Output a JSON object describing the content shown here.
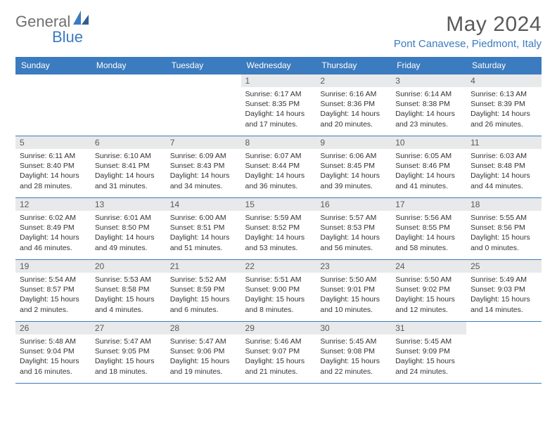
{
  "logo": {
    "part1": "General",
    "part2": "Blue"
  },
  "title": "May 2024",
  "location": "Pont Canavese, Piedmont, Italy",
  "colors": {
    "header_bg": "#3b7bbf",
    "header_text": "#ffffff",
    "daynum_bg": "#e8e9ea",
    "border": "#3b7bbf",
    "title_color": "#5a5a5a",
    "location_color": "#3b7bbf"
  },
  "day_headers": [
    "Sunday",
    "Monday",
    "Tuesday",
    "Wednesday",
    "Thursday",
    "Friday",
    "Saturday"
  ],
  "weeks": [
    [
      null,
      null,
      null,
      {
        "d": "1",
        "sr": "6:17 AM",
        "ss": "8:35 PM",
        "dl": "14 hours and 17 minutes."
      },
      {
        "d": "2",
        "sr": "6:16 AM",
        "ss": "8:36 PM",
        "dl": "14 hours and 20 minutes."
      },
      {
        "d": "3",
        "sr": "6:14 AM",
        "ss": "8:38 PM",
        "dl": "14 hours and 23 minutes."
      },
      {
        "d": "4",
        "sr": "6:13 AM",
        "ss": "8:39 PM",
        "dl": "14 hours and 26 minutes."
      }
    ],
    [
      {
        "d": "5",
        "sr": "6:11 AM",
        "ss": "8:40 PM",
        "dl": "14 hours and 28 minutes."
      },
      {
        "d": "6",
        "sr": "6:10 AM",
        "ss": "8:41 PM",
        "dl": "14 hours and 31 minutes."
      },
      {
        "d": "7",
        "sr": "6:09 AM",
        "ss": "8:43 PM",
        "dl": "14 hours and 34 minutes."
      },
      {
        "d": "8",
        "sr": "6:07 AM",
        "ss": "8:44 PM",
        "dl": "14 hours and 36 minutes."
      },
      {
        "d": "9",
        "sr": "6:06 AM",
        "ss": "8:45 PM",
        "dl": "14 hours and 39 minutes."
      },
      {
        "d": "10",
        "sr": "6:05 AM",
        "ss": "8:46 PM",
        "dl": "14 hours and 41 minutes."
      },
      {
        "d": "11",
        "sr": "6:03 AM",
        "ss": "8:48 PM",
        "dl": "14 hours and 44 minutes."
      }
    ],
    [
      {
        "d": "12",
        "sr": "6:02 AM",
        "ss": "8:49 PM",
        "dl": "14 hours and 46 minutes."
      },
      {
        "d": "13",
        "sr": "6:01 AM",
        "ss": "8:50 PM",
        "dl": "14 hours and 49 minutes."
      },
      {
        "d": "14",
        "sr": "6:00 AM",
        "ss": "8:51 PM",
        "dl": "14 hours and 51 minutes."
      },
      {
        "d": "15",
        "sr": "5:59 AM",
        "ss": "8:52 PM",
        "dl": "14 hours and 53 minutes."
      },
      {
        "d": "16",
        "sr": "5:57 AM",
        "ss": "8:53 PM",
        "dl": "14 hours and 56 minutes."
      },
      {
        "d": "17",
        "sr": "5:56 AM",
        "ss": "8:55 PM",
        "dl": "14 hours and 58 minutes."
      },
      {
        "d": "18",
        "sr": "5:55 AM",
        "ss": "8:56 PM",
        "dl": "15 hours and 0 minutes."
      }
    ],
    [
      {
        "d": "19",
        "sr": "5:54 AM",
        "ss": "8:57 PM",
        "dl": "15 hours and 2 minutes."
      },
      {
        "d": "20",
        "sr": "5:53 AM",
        "ss": "8:58 PM",
        "dl": "15 hours and 4 minutes."
      },
      {
        "d": "21",
        "sr": "5:52 AM",
        "ss": "8:59 PM",
        "dl": "15 hours and 6 minutes."
      },
      {
        "d": "22",
        "sr": "5:51 AM",
        "ss": "9:00 PM",
        "dl": "15 hours and 8 minutes."
      },
      {
        "d": "23",
        "sr": "5:50 AM",
        "ss": "9:01 PM",
        "dl": "15 hours and 10 minutes."
      },
      {
        "d": "24",
        "sr": "5:50 AM",
        "ss": "9:02 PM",
        "dl": "15 hours and 12 minutes."
      },
      {
        "d": "25",
        "sr": "5:49 AM",
        "ss": "9:03 PM",
        "dl": "15 hours and 14 minutes."
      }
    ],
    [
      {
        "d": "26",
        "sr": "5:48 AM",
        "ss": "9:04 PM",
        "dl": "15 hours and 16 minutes."
      },
      {
        "d": "27",
        "sr": "5:47 AM",
        "ss": "9:05 PM",
        "dl": "15 hours and 18 minutes."
      },
      {
        "d": "28",
        "sr": "5:47 AM",
        "ss": "9:06 PM",
        "dl": "15 hours and 19 minutes."
      },
      {
        "d": "29",
        "sr": "5:46 AM",
        "ss": "9:07 PM",
        "dl": "15 hours and 21 minutes."
      },
      {
        "d": "30",
        "sr": "5:45 AM",
        "ss": "9:08 PM",
        "dl": "15 hours and 22 minutes."
      },
      {
        "d": "31",
        "sr": "5:45 AM",
        "ss": "9:09 PM",
        "dl": "15 hours and 24 minutes."
      },
      null
    ]
  ],
  "labels": {
    "sunrise": "Sunrise:",
    "sunset": "Sunset:",
    "daylight": "Daylight:"
  }
}
